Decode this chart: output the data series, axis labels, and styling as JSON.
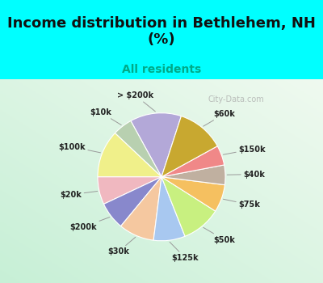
{
  "title": "Income distribution in Bethlehem, NH\n(%)",
  "subtitle": "All residents",
  "background_color": "#00FFFF",
  "labels": [
    "> $200k",
    "$10k",
    "$100k",
    "$20k",
    "$200k",
    "$30k",
    "$125k",
    "$50k",
    "$75k",
    "$40k",
    "$150k",
    "$60k"
  ],
  "values": [
    13,
    5,
    12,
    7,
    7,
    9,
    8,
    10,
    7,
    5,
    5,
    12
  ],
  "colors": [
    "#b3a8d8",
    "#b8d0b0",
    "#f0f08a",
    "#f0b8c0",
    "#8888cc",
    "#f5c8a0",
    "#a8c8f0",
    "#c8f080",
    "#f5c060",
    "#c0b0a0",
    "#f08888",
    "#c8a830"
  ],
  "startangle": 72,
  "watermark": "City-Data.com",
  "title_fontsize": 13,
  "subtitle_fontsize": 10,
  "label_fontsize": 7
}
